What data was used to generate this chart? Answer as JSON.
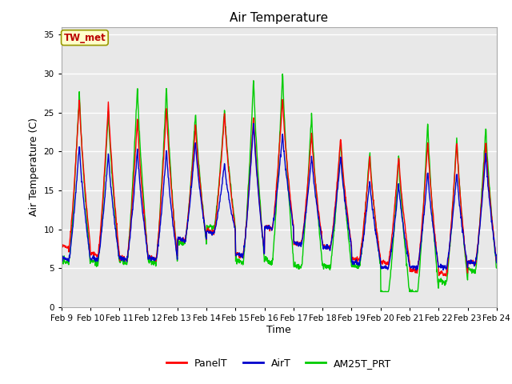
{
  "title": "Air Temperature",
  "ylabel": "Air Temperature (C)",
  "xlabel": "Time",
  "ylim": [
    0,
    36
  ],
  "yticks": [
    0,
    5,
    10,
    15,
    20,
    25,
    30,
    35
  ],
  "fig_bg_color": "#ffffff",
  "plot_bg_color": "#e8e8e8",
  "grid_color": "#ffffff",
  "annotation_text": "TW_met",
  "annotation_color": "#bb0000",
  "annotation_bg": "#ffffcc",
  "annotation_border": "#999900",
  "panel_color": "#ff0000",
  "air_color": "#0000cc",
  "am25t_color": "#00cc00",
  "line_width": 1.0,
  "xtick_labels": [
    "Feb 9",
    "Feb 10",
    "Feb 11",
    "Feb 12",
    "Feb 13",
    "Feb 14",
    "Feb 15",
    "Feb 16",
    "Feb 17",
    "Feb 18",
    "Feb 19",
    "Feb 20",
    "Feb 21",
    "Feb 22",
    "Feb 23",
    "Feb 24"
  ],
  "legend_labels": [
    "PanelT",
    "AirT",
    "AM25T_PRT"
  ],
  "n_days": 15,
  "pts_per_day": 96
}
